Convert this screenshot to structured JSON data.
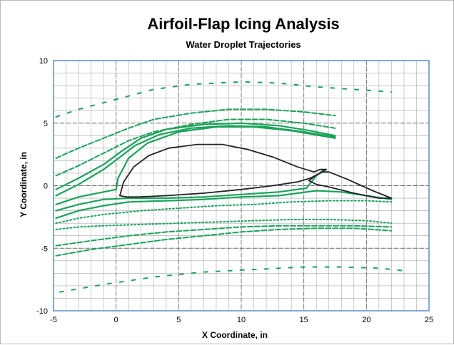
{
  "chart_data": {
    "type": "line",
    "title": "Airfoil-Flap Icing Analysis",
    "subtitle": "Water Droplet Trajectories",
    "xlabel": "X Coordinate, in",
    "ylabel": "Y Coordinate, in",
    "xlim": [
      -5,
      25
    ],
    "ylim": [
      -10,
      10
    ],
    "xticks": [
      "-5",
      "0",
      "5",
      "10",
      "15",
      "20",
      "25"
    ],
    "yticks": [
      "-10",
      "-5",
      "0",
      "5",
      "10"
    ],
    "minor_grid_step": 1,
    "grid": true,
    "colors": {
      "frame": "#5b8ec9",
      "grid_minor": "#a9a9a9",
      "grid_major": "#6a6a6a",
      "trajectory": "#1aa35a",
      "airfoil": "#222222"
    },
    "airfoil_main": [
      [
        0.3,
        -0.8
      ],
      [
        0.6,
        0.3
      ],
      [
        1.4,
        1.5
      ],
      [
        2.6,
        2.4
      ],
      [
        4.2,
        3.0
      ],
      [
        6.5,
        3.3
      ],
      [
        8.5,
        3.3
      ],
      [
        10.5,
        2.9
      ],
      [
        12.5,
        2.3
      ],
      [
        14.5,
        1.5
      ],
      [
        15.8,
        1.1
      ],
      [
        16.3,
        1.3
      ],
      [
        16.8,
        1.3
      ],
      [
        16.3,
        1.0
      ],
      [
        15.5,
        0.6
      ],
      [
        14.5,
        0.3
      ],
      [
        12.5,
        0.0
      ],
      [
        10.0,
        -0.3
      ],
      [
        7.0,
        -0.6
      ],
      [
        4.0,
        -0.8
      ],
      [
        1.8,
        -0.9
      ],
      [
        0.8,
        -0.9
      ],
      [
        0.3,
        -0.8
      ]
    ],
    "airfoil_flap": [
      [
        15.4,
        0.4
      ],
      [
        15.9,
        0.8
      ],
      [
        16.5,
        1.1
      ],
      [
        17.0,
        1.1
      ],
      [
        18.5,
        0.5
      ],
      [
        20.5,
        -0.4
      ],
      [
        22.0,
        -1.0
      ],
      [
        21.0,
        -1.0
      ],
      [
        19.0,
        -0.6
      ],
      [
        17.0,
        -0.1
      ],
      [
        16.0,
        0.1
      ],
      [
        15.4,
        0.4
      ]
    ],
    "series": [
      {
        "points": [
          [
            -4.8,
            5.5
          ],
          [
            -3.0,
            6.1
          ],
          [
            0,
            6.9
          ],
          [
            3,
            7.7
          ],
          [
            6,
            8.1
          ],
          [
            10,
            8.3
          ],
          [
            13,
            8.2
          ],
          [
            16,
            7.9
          ],
          [
            19,
            7.7
          ],
          [
            22,
            7.5
          ]
        ],
        "style": "sparse"
      },
      {
        "points": [
          [
            -4.8,
            2.2
          ],
          [
            -3,
            3.0
          ],
          [
            -1,
            3.8
          ],
          [
            1,
            4.6
          ],
          [
            3,
            5.3
          ],
          [
            6,
            5.8
          ],
          [
            9,
            6.1
          ],
          [
            12,
            6.1
          ],
          [
            15,
            5.9
          ],
          [
            17.5,
            5.6
          ]
        ],
        "style": "dashed"
      },
      {
        "points": [
          [
            -4.8,
            0.8
          ],
          [
            -3,
            1.6
          ],
          [
            -1,
            2.6
          ],
          [
            1,
            3.6
          ],
          [
            3,
            4.3
          ],
          [
            6,
            4.9
          ],
          [
            9,
            5.3
          ],
          [
            12,
            5.3
          ],
          [
            15,
            5.0
          ],
          [
            17.5,
            4.6
          ]
        ],
        "style": "dashed"
      },
      {
        "points": [
          [
            -4.8,
            -0.3
          ],
          [
            -3,
            0.6
          ],
          [
            -1,
            1.7
          ],
          [
            0.5,
            2.8
          ],
          [
            2,
            3.8
          ],
          [
            4,
            4.5
          ],
          [
            7,
            4.9
          ],
          [
            10,
            5.0
          ],
          [
            13,
            4.8
          ],
          [
            15.5,
            4.4
          ],
          [
            17.5,
            4.0
          ]
        ],
        "style": "solid"
      },
      {
        "points": [
          [
            -4.8,
            -0.8
          ],
          [
            -3,
            0.1
          ],
          [
            -1,
            1.3
          ],
          [
            0.2,
            2.2
          ],
          [
            1.5,
            3.2
          ],
          [
            3.5,
            4.1
          ],
          [
            6,
            4.6
          ],
          [
            9,
            4.8
          ],
          [
            12,
            4.7
          ],
          [
            15,
            4.3
          ],
          [
            17.5,
            3.9
          ]
        ],
        "style": "solid"
      },
      {
        "points": [
          [
            -4.8,
            -1.5
          ],
          [
            -3,
            -0.9
          ],
          [
            -1,
            -0.5
          ],
          [
            0,
            -0.3
          ],
          [
            0.15,
            0.6
          ],
          [
            1,
            2.2
          ],
          [
            2.5,
            3.4
          ],
          [
            5,
            4.3
          ],
          [
            8,
            4.7
          ],
          [
            11,
            4.7
          ],
          [
            14,
            4.4
          ],
          [
            17.5,
            3.8
          ]
        ],
        "style": "solid"
      },
      {
        "points": [
          [
            -4.8,
            -2.0
          ],
          [
            -3,
            -1.5
          ],
          [
            -1,
            -1.1
          ],
          [
            1,
            -1.0
          ],
          [
            4,
            -1.0
          ],
          [
            7,
            -0.9
          ],
          [
            10,
            -0.7
          ],
          [
            13,
            -0.5
          ],
          [
            15.2,
            -0.2
          ],
          [
            16,
            0.8
          ],
          [
            16.5,
            1.2
          ]
        ],
        "style": "solid"
      },
      {
        "points": [
          [
            -4.8,
            -2.6
          ],
          [
            -3,
            -2.0
          ],
          [
            -1,
            -1.6
          ],
          [
            1,
            -1.3
          ],
          [
            4,
            -1.2
          ],
          [
            7,
            -1.1
          ],
          [
            10,
            -0.9
          ],
          [
            13,
            -0.8
          ],
          [
            16,
            -0.4
          ],
          [
            18,
            -0.5
          ],
          [
            20,
            -0.8
          ],
          [
            22,
            -1.1
          ]
        ],
        "style": "solid"
      },
      {
        "points": [
          [
            -4.8,
            -3.0
          ],
          [
            -3,
            -2.6
          ],
          [
            -1,
            -2.3
          ],
          [
            2,
            -2.0
          ],
          [
            5,
            -1.8
          ],
          [
            8,
            -1.6
          ],
          [
            11,
            -1.5
          ],
          [
            14,
            -1.3
          ],
          [
            17,
            -1.2
          ],
          [
            20,
            -1.2
          ],
          [
            22,
            -1.3
          ]
        ],
        "style": "dotted"
      },
      {
        "points": [
          [
            -4.8,
            -3.5
          ],
          [
            -3,
            -3.3
          ],
          [
            -1,
            -3.2
          ],
          [
            2,
            -3.1
          ],
          [
            5,
            -3.0
          ],
          [
            8,
            -2.9
          ],
          [
            11,
            -2.8
          ],
          [
            14,
            -2.7
          ],
          [
            17,
            -2.7
          ],
          [
            20,
            -2.8
          ],
          [
            22,
            -3.0
          ]
        ],
        "style": "dotted"
      },
      {
        "points": [
          [
            -4.8,
            -4.8
          ],
          [
            -2,
            -4.4
          ],
          [
            1,
            -4.0
          ],
          [
            4,
            -3.7
          ],
          [
            7,
            -3.5
          ],
          [
            10,
            -3.3
          ],
          [
            13,
            -3.2
          ],
          [
            16,
            -3.2
          ],
          [
            19,
            -3.2
          ],
          [
            22,
            -3.3
          ]
        ],
        "style": "dashed"
      },
      {
        "points": [
          [
            -4.8,
            -5.6
          ],
          [
            -2,
            -5.1
          ],
          [
            1,
            -4.7
          ],
          [
            4,
            -4.3
          ],
          [
            7,
            -4.0
          ],
          [
            10,
            -3.7
          ],
          [
            13,
            -3.5
          ],
          [
            16,
            -3.4
          ],
          [
            19,
            -3.4
          ],
          [
            22,
            -3.6
          ]
        ],
        "style": "dashed"
      },
      {
        "points": [
          [
            -4.5,
            -8.5
          ],
          [
            -1,
            -7.9
          ],
          [
            3,
            -7.3
          ],
          [
            7,
            -6.9
          ],
          [
            11,
            -6.7
          ],
          [
            15,
            -6.5
          ],
          [
            18,
            -6.5
          ],
          [
            21,
            -6.6
          ],
          [
            23,
            -6.8
          ]
        ],
        "style": "sparse"
      }
    ]
  }
}
